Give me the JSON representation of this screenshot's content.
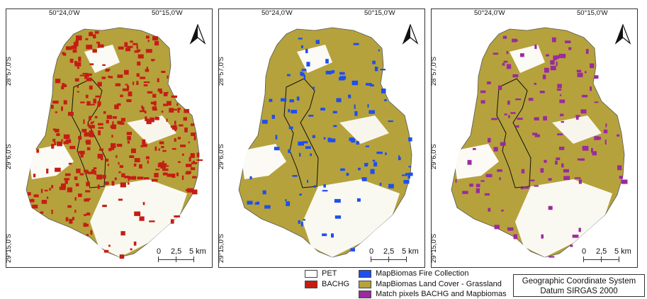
{
  "panels": [
    {
      "id": "bachg",
      "overlay_color": "#c41e14"
    },
    {
      "id": "fire",
      "overlay_color": "#1f4ef0"
    },
    {
      "id": "match",
      "overlay_color": "#9b2a9e"
    }
  ],
  "grid_labels": {
    "lon_left": "50°24,0'W",
    "lon_right": "50°15,0'W",
    "lat_top": "28°57,0'S",
    "lat_mid": "29°6,0'S",
    "lat_bottom": "29°15,0'S"
  },
  "scale_bar": {
    "t0": "0",
    "t1": "2,5",
    "t2": "5 km"
  },
  "legend": {
    "pet": "PET",
    "bachg": "BACHG",
    "fire": "MapBiomas Fire Collection",
    "grassland": "MapBiomas Land Cover - Grassland",
    "match": "Match pixels BACHG and Mapbiomas"
  },
  "colors": {
    "pet": "#ffffff",
    "bachg": "#c41e14",
    "fire": "#1f4ef0",
    "grassland": "#b5a23c",
    "match": "#9b2a9e"
  },
  "crs": {
    "line1": "Geographic Coordinate System",
    "line2": "Datum SIRGAS 2000"
  },
  "north_icon": "north-arrow-icon"
}
